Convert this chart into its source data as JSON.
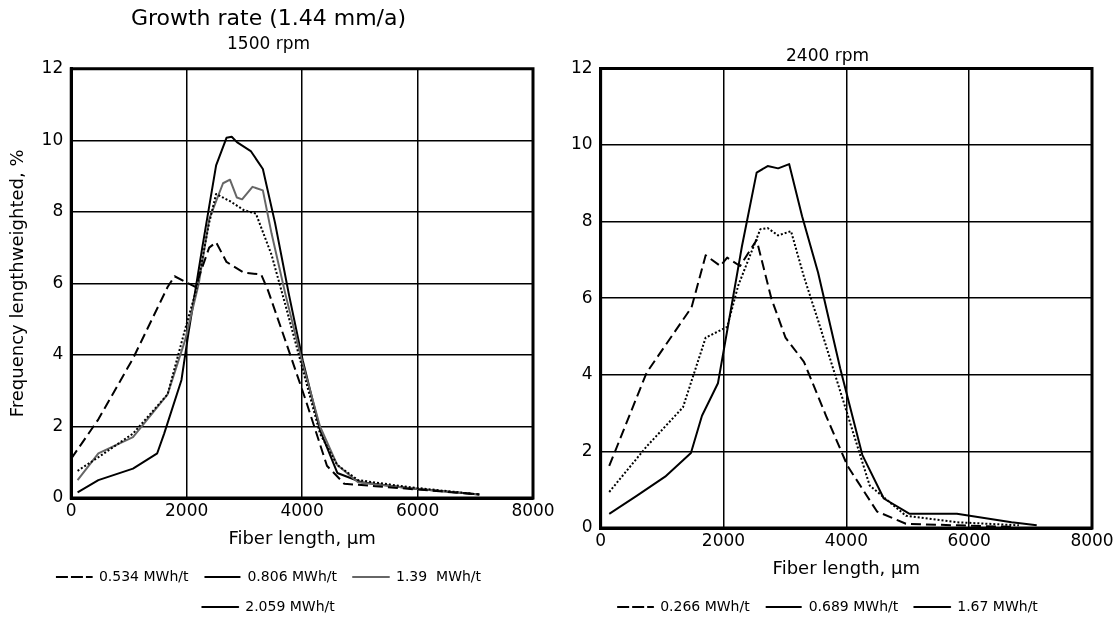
{
  "chart_data": [
    {
      "type": "line",
      "title": "Growth rate (1.44 mm/a)",
      "subtitle": "1500 rpm",
      "xlabel": "Fiber length, µm",
      "ylabel": "Frequency lengthweighted, %",
      "xlim": [
        0,
        8000
      ],
      "xticks": [
        0,
        2000,
        4000,
        6000,
        8000
      ],
      "ylim": [
        0,
        12
      ],
      "yticks": [
        0,
        2,
        4,
        6,
        8,
        10,
        12
      ],
      "grid": true,
      "legend": "bottom",
      "marker": "none",
      "series": [
        {
          "name": "0.534 MWh/t",
          "color": "#000000",
          "line_style": "dashed",
          "x": [
            0,
            470,
            1070,
            1670,
            1790,
            2150,
            2390,
            2510,
            2690,
            2990,
            3290,
            3410,
            3710,
            4070,
            4430,
            4730,
            5270,
            7070
          ],
          "values": [
            1.1,
            2.2,
            3.9,
            5.9,
            6.2,
            5.9,
            7.0,
            7.15,
            6.6,
            6.3,
            6.25,
            5.8,
            4.4,
            2.7,
            0.9,
            0.4,
            0.33,
            0.1
          ]
        },
        {
          "name": "0.806 MWh/t",
          "color": "#000000",
          "line_style": "dotted",
          "x": [
            110,
            470,
            1070,
            1670,
            1970,
            2180,
            2390,
            2510,
            2750,
            2990,
            3200,
            3470,
            3710,
            4010,
            4310,
            4610,
            4970,
            5870,
            7070
          ],
          "values": [
            0.76,
            1.14,
            1.8,
            2.9,
            4.7,
            5.9,
            7.7,
            8.5,
            8.3,
            8.05,
            7.95,
            6.8,
            5.4,
            3.6,
            1.8,
            0.92,
            0.5,
            0.3,
            0.1
          ]
        },
        {
          "name": "1.39  MWh/t",
          "color": "#666666",
          "line_style": "solid",
          "x": [
            110,
            470,
            1070,
            1670,
            1970,
            2210,
            2390,
            2630,
            2750,
            2870,
            2960,
            3140,
            3320,
            3470,
            3710,
            4010,
            4310,
            4610,
            4970,
            5870,
            7070
          ],
          "values": [
            0.5,
            1.25,
            1.7,
            2.9,
            4.4,
            6.0,
            7.8,
            8.8,
            8.9,
            8.4,
            8.35,
            8.7,
            8.6,
            7.4,
            5.7,
            3.75,
            2.0,
            0.92,
            0.44,
            0.27,
            0.1
          ]
        },
        {
          "name": "2.059 MWh/t",
          "color": "#000000",
          "line_style": "solid",
          "x": [
            110,
            470,
            1070,
            1490,
            1610,
            1910,
            2030,
            2270,
            2510,
            2690,
            2780,
            2870,
            3110,
            3320,
            3530,
            3770,
            4010,
            4310,
            4610,
            5030,
            5870,
            7070
          ],
          "values": [
            0.16,
            0.5,
            0.82,
            1.25,
            1.8,
            3.3,
            4.6,
            7.0,
            9.3,
            10.07,
            10.1,
            9.95,
            9.7,
            9.2,
            7.7,
            5.7,
            3.85,
            1.9,
            0.7,
            0.44,
            0.27,
            0.1
          ]
        }
      ]
    },
    {
      "type": "line",
      "title": "2400 rpm",
      "xlabel": "Fiber length, µm",
      "xlim": [
        0,
        8000
      ],
      "xticks": [
        0,
        2000,
        4000,
        6000,
        8000
      ],
      "ylim": [
        0,
        12
      ],
      "yticks": [
        0,
        2,
        4,
        6,
        8,
        10,
        12
      ],
      "grid": true,
      "legend": "bottom",
      "marker": "none",
      "series": [
        {
          "name": "0.266 MWh/t",
          "color": "#000000",
          "line_style": "dashed",
          "x": [
            140,
            750,
            1480,
            1710,
            1950,
            2060,
            2270,
            2540,
            2780,
            3010,
            3310,
            3670,
            4020,
            4500,
            4970,
            5800,
            6690
          ],
          "values": [
            1.62,
            4.06,
            5.76,
            7.12,
            6.84,
            7.06,
            6.84,
            7.52,
            5.99,
            4.97,
            4.34,
            2.93,
            1.62,
            0.43,
            0.11,
            0.07,
            0.03
          ]
        },
        {
          "name": "0.689 MWh/t",
          "color": "#000000",
          "line_style": "dotted",
          "x": [
            140,
            750,
            1340,
            1710,
            2060,
            2240,
            2600,
            2720,
            2890,
            3100,
            3310,
            3540,
            3960,
            4380,
            4970,
            5800,
            6810
          ],
          "values": [
            0.94,
            2.13,
            3.15,
            4.97,
            5.25,
            6.33,
            7.8,
            7.83,
            7.64,
            7.75,
            6.56,
            5.42,
            3.27,
            1.11,
            0.32,
            0.15,
            0.07
          ]
        },
        {
          "name": "1.67 MWh/t",
          "color": "#000000",
          "line_style": "solid",
          "x": [
            140,
            580,
            1050,
            1470,
            1650,
            1910,
            2090,
            2300,
            2540,
            2720,
            2890,
            3070,
            3280,
            3540,
            3900,
            4260,
            4610,
            5030,
            5800,
            6690,
            7100
          ],
          "values": [
            0.37,
            0.83,
            1.34,
            1.96,
            2.93,
            3.78,
            5.42,
            7.35,
            9.28,
            9.45,
            9.39,
            9.5,
            8.14,
            6.67,
            4.17,
            1.91,
            0.77,
            0.37,
            0.37,
            0.15,
            0.07
          ]
        }
      ]
    }
  ]
}
